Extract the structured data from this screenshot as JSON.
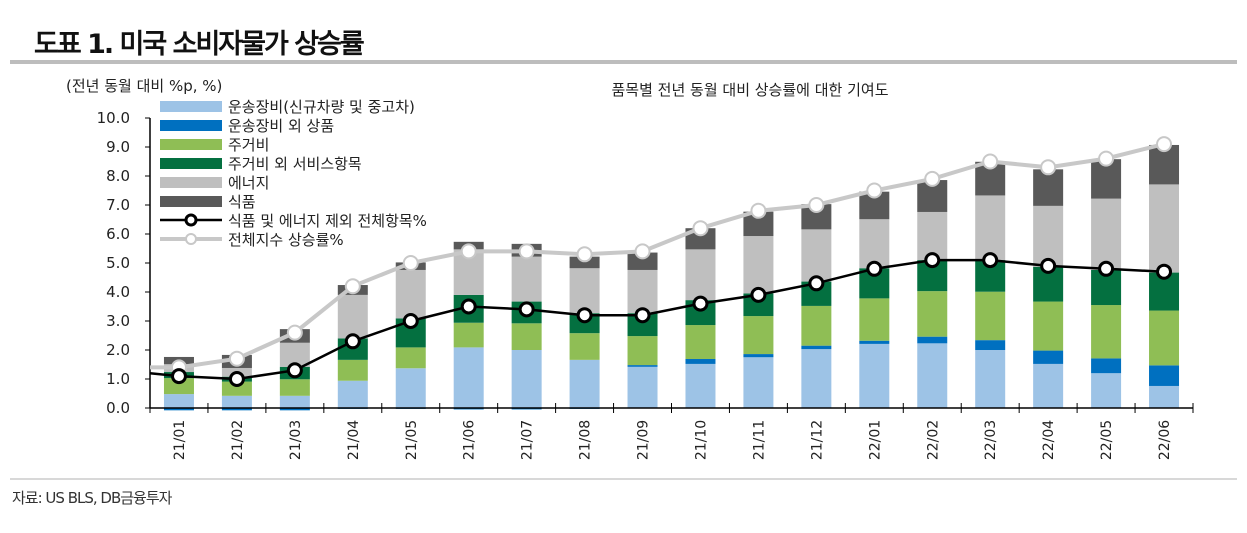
{
  "title": "도표 1. 미국 소비자물가 상승률",
  "source": "자료: US BLS, DB금융투자",
  "chart_data": {
    "type": "bar",
    "stacked": true,
    "title": "품목별 전년 동월 대비 상승률에 대한 기여도",
    "ylabel": "(전년 동월 대비 %p, %)",
    "xlabel": "",
    "ylim": [
      0,
      10
    ],
    "yticks": [
      "0.0",
      "1.0",
      "2.0",
      "3.0",
      "4.0",
      "5.0",
      "6.0",
      "7.0",
      "8.0",
      "9.0",
      "10.0"
    ],
    "grid": false,
    "legend": "top-left",
    "categories": [
      "21/01",
      "21/02",
      "21/03",
      "21/04",
      "21/05",
      "21/06",
      "21/07",
      "21/08",
      "21/09",
      "21/10",
      "21/11",
      "21/12",
      "22/01",
      "22/02",
      "22/03",
      "22/04",
      "22/05",
      "22/06"
    ],
    "series": [
      {
        "name": "운송장비(신규차량 및 중고차)",
        "kind": "bar",
        "color": "#9dc3e6",
        "values": [
          0.48,
          0.42,
          0.42,
          0.94,
          1.37,
          2.09,
          2.0,
          1.66,
          1.42,
          1.52,
          1.75,
          2.03,
          2.21,
          2.23,
          2.0,
          1.52,
          1.2,
          0.76
        ]
      },
      {
        "name": "운송장비 외 상품",
        "kind": "bar",
        "color": "#0070c0",
        "values": [
          -0.08,
          -0.08,
          -0.08,
          -0.03,
          -0.03,
          -0.05,
          -0.05,
          -0.03,
          0.06,
          0.17,
          0.11,
          0.12,
          0.11,
          0.23,
          0.34,
          0.46,
          0.51,
          0.71
        ]
      },
      {
        "name": "주거비",
        "kind": "bar",
        "color": "#8fbe55",
        "values": [
          0.55,
          0.49,
          0.57,
          0.72,
          0.72,
          0.85,
          0.92,
          0.92,
          1.0,
          1.17,
          1.31,
          1.37,
          1.46,
          1.57,
          1.67,
          1.69,
          1.84,
          1.89
        ]
      },
      {
        "name": "주거비 외 서비스항목",
        "kind": "bar",
        "color": "#047040",
        "values": [
          0.21,
          0.17,
          0.43,
          0.74,
          1.0,
          0.96,
          0.75,
          0.69,
          0.79,
          0.86,
          0.78,
          0.84,
          1.04,
          1.07,
          1.09,
          1.2,
          1.21,
          1.31
        ]
      },
      {
        "name": "에너지",
        "kind": "bar",
        "color": "#bfbfbf",
        "values": [
          0.27,
          0.3,
          0.83,
          1.5,
          1.67,
          1.57,
          1.55,
          1.55,
          1.49,
          1.75,
          1.98,
          1.8,
          1.69,
          1.66,
          2.23,
          2.1,
          2.46,
          3.04
        ]
      },
      {
        "name": "식품",
        "kind": "bar",
        "color": "#595959",
        "values": [
          0.25,
          0.45,
          0.47,
          0.34,
          0.26,
          0.26,
          0.44,
          0.4,
          0.6,
          0.73,
          0.84,
          0.87,
          0.95,
          1.1,
          1.16,
          1.26,
          1.36,
          1.36
        ]
      },
      {
        "name": "식품 및 에너지 제외 전체항목%",
        "kind": "line",
        "color": "#000000",
        "values": [
          1.1,
          1.0,
          1.3,
          2.3,
          3.0,
          3.5,
          3.4,
          3.2,
          3.2,
          3.6,
          3.9,
          4.3,
          4.8,
          5.1,
          5.1,
          4.9,
          4.8,
          4.7
        ]
      },
      {
        "name": "전체지수 상승률%",
        "kind": "line",
        "color": "#c8c8c8",
        "values": [
          1.4,
          1.7,
          2.6,
          4.2,
          5.0,
          5.4,
          5.4,
          5.3,
          5.4,
          6.2,
          6.8,
          7.0,
          7.5,
          7.9,
          8.5,
          8.3,
          8.6,
          9.1
        ]
      }
    ]
  }
}
